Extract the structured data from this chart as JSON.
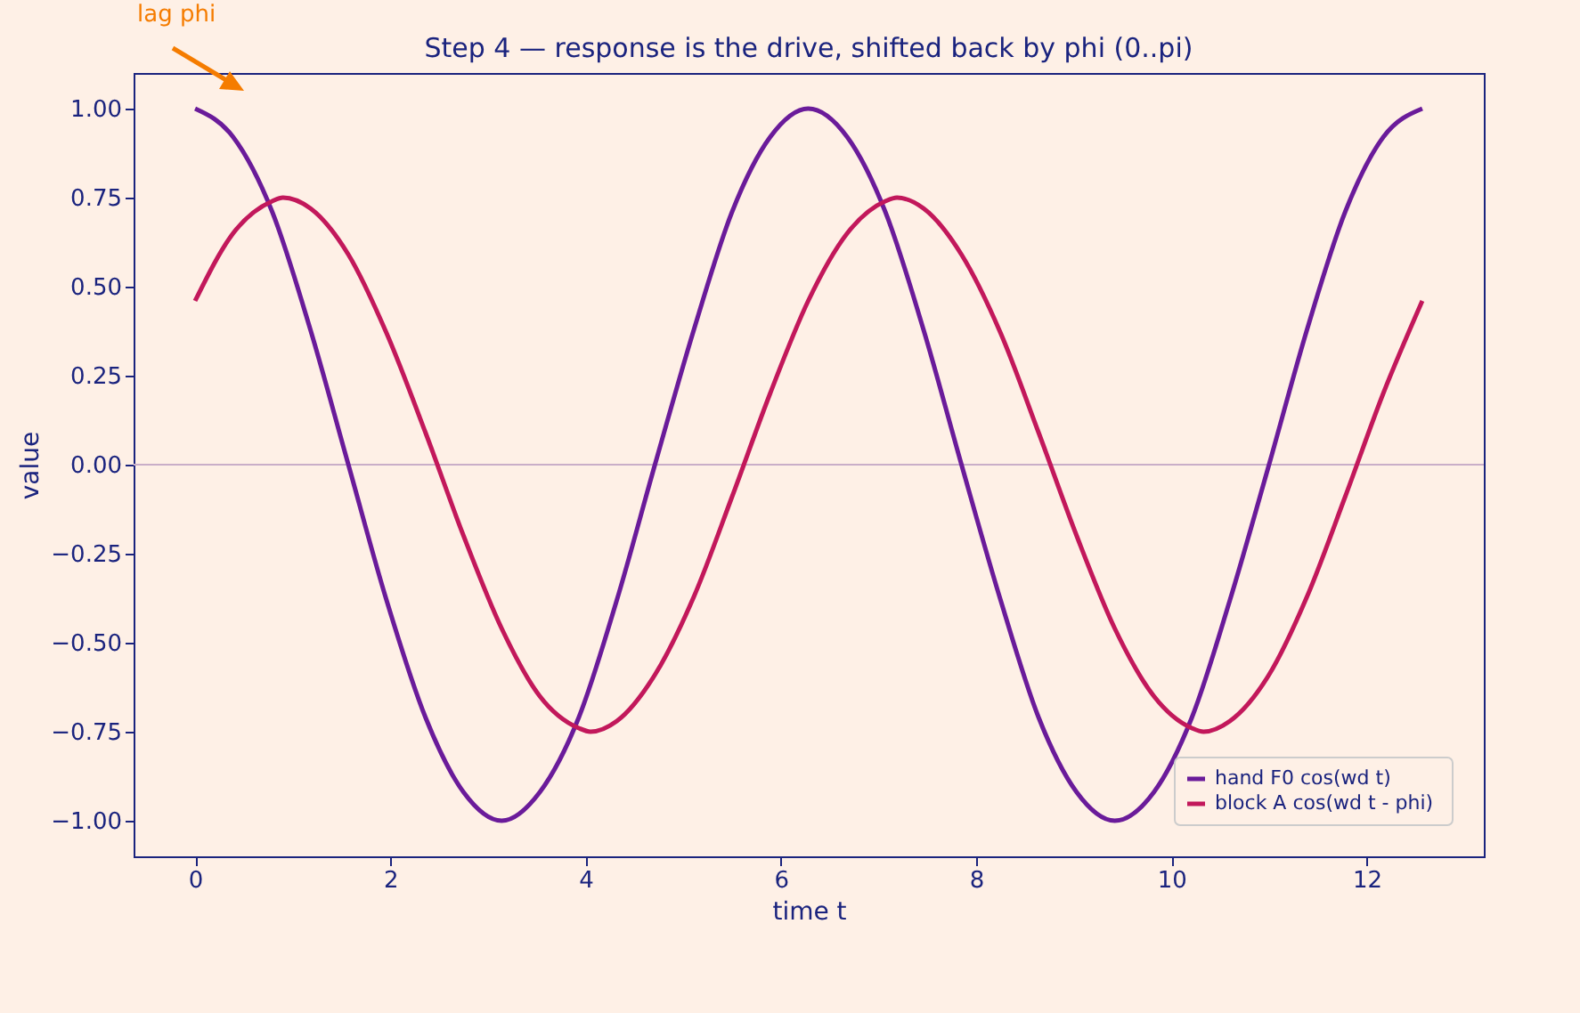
{
  "chart_data": {
    "type": "line",
    "title": "Step 4 — response is the drive, shifted back by phi (0..pi)",
    "xlabel": "time t",
    "ylabel": "value",
    "xlim": [
      -0.63,
      13.2
    ],
    "ylim": [
      -1.1,
      1.1
    ],
    "xticks": [
      0,
      2,
      4,
      6,
      8,
      10,
      12
    ],
    "yticks": [
      {
        "value": -1,
        "label": "−1.00"
      },
      {
        "value": -0.75,
        "label": "−0.75"
      },
      {
        "value": -0.5,
        "label": "−0.50"
      },
      {
        "value": -0.25,
        "label": "−0.25"
      },
      {
        "value": 0,
        "label": "0.00"
      },
      {
        "value": 0.25,
        "label": "0.25"
      },
      {
        "value": 0.5,
        "label": "0.50"
      },
      {
        "value": 0.75,
        "label": "0.75"
      },
      {
        "value": 1,
        "label": "1.00"
      }
    ],
    "grid": false,
    "legend": "bottom right",
    "line_style": "solid",
    "marker": "none",
    "ref_lines": [
      {
        "axis": "y",
        "value": 0,
        "color": "#c9aec8"
      }
    ],
    "annotations": [
      "lag phi"
    ],
    "series": [
      {
        "name": "hand  F0 cos(wd t)",
        "color": "#6a1b9a",
        "x": [
          0,
          0.39,
          0.79,
          1.18,
          1.57,
          1.96,
          2.36,
          2.75,
          3.14,
          3.53,
          3.93,
          4.32,
          4.71,
          5.11,
          5.5,
          5.89,
          6.28,
          6.68,
          7.07,
          7.46,
          7.85,
          8.25,
          8.64,
          9.03,
          9.42,
          9.82,
          10.21,
          10.6,
          11.0,
          11.39,
          11.78,
          12.17,
          12.57
        ],
        "values": [
          1,
          0.92,
          0.71,
          0.38,
          0,
          -0.38,
          -0.71,
          -0.92,
          -1,
          -0.92,
          -0.71,
          -0.38,
          0,
          0.38,
          0.71,
          0.92,
          1,
          0.92,
          0.71,
          0.38,
          0,
          -0.38,
          -0.71,
          -0.92,
          -1,
          -0.92,
          -0.71,
          -0.38,
          0,
          0.38,
          0.71,
          0.92,
          1
        ]
      },
      {
        "name": "block  A cos(wd t - phi)",
        "color": "#c2185b",
        "x": [
          0,
          0.39,
          0.79,
          0.9,
          1.18,
          1.57,
          1.96,
          2.36,
          2.75,
          3.14,
          3.53,
          3.93,
          4.05,
          4.32,
          4.71,
          5.11,
          5.5,
          5.89,
          6.28,
          6.68,
          7.07,
          7.19,
          7.46,
          7.85,
          8.25,
          8.64,
          9.03,
          9.42,
          9.82,
          10.21,
          10.33,
          10.6,
          11.0,
          11.39,
          11.78,
          12.17,
          12.57
        ],
        "values": [
          0.46,
          0.65,
          0.74,
          0.75,
          0.72,
          0.59,
          0.37,
          0.09,
          -0.2,
          -0.46,
          -0.65,
          -0.74,
          -0.75,
          -0.72,
          -0.59,
          -0.37,
          -0.09,
          0.2,
          0.46,
          0.65,
          0.74,
          0.75,
          0.72,
          0.59,
          0.37,
          0.09,
          -0.2,
          -0.46,
          -0.65,
          -0.74,
          -0.75,
          -0.72,
          -0.59,
          -0.37,
          -0.09,
          0.2,
          0.46
        ]
      }
    ]
  }
}
